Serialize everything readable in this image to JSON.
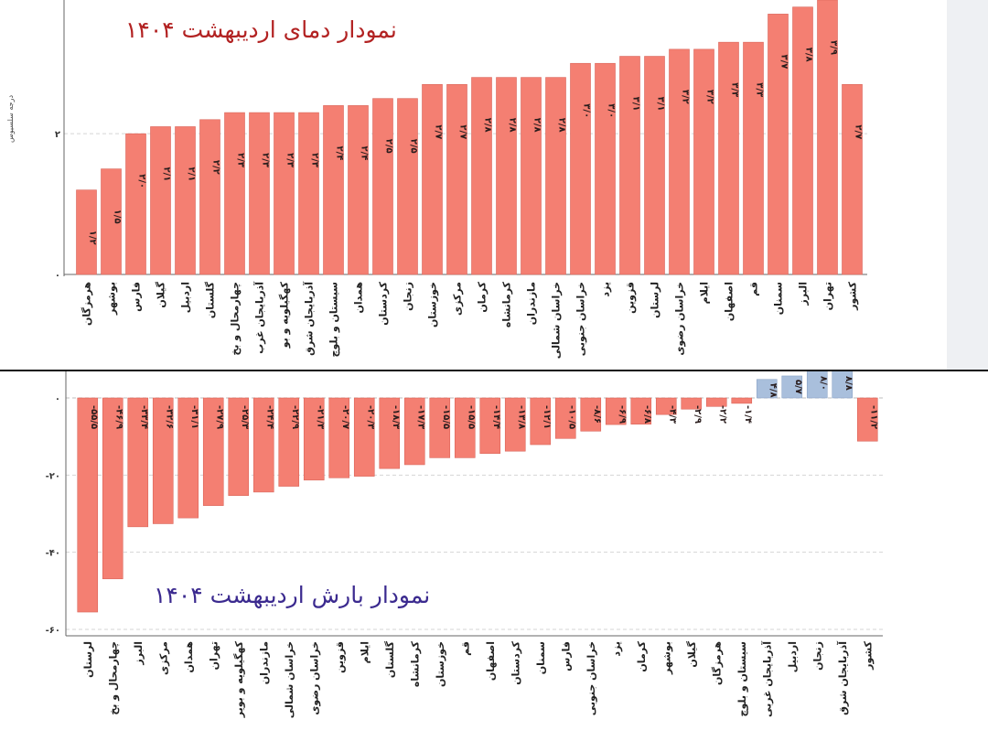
{
  "chart_data": [
    {
      "type": "bar",
      "title": "نمودار دمای اردیبهشت ۱۴۰۴",
      "ylabel": "درجه سلسیوس",
      "ylim": [
        0,
        3.9
      ],
      "yticks": [
        {
          "value": 0,
          "label": "۰"
        },
        {
          "value": 2,
          "label": "۲"
        }
      ],
      "grid": true,
      "categories": [
        "هرمزگان",
        "بوشهر",
        "فارس",
        "گیلان",
        "اردبیل",
        "گلستان",
        "چهارمحال و بخ",
        "آذربایجان غرب",
        "کهگیلویه و بو",
        "آذربایجان شرق",
        "سیستان و بلوچ",
        "همدان",
        "کردستان",
        "زنجان",
        "خوزستان",
        "مرکزی",
        "کرمان",
        "کرمانشاه",
        "مازندران",
        "خراسان شمالی",
        "خراسان جنوبی",
        "یزد",
        "قزوین",
        "لرستان",
        "خراسان رضوی",
        "ایلام",
        "اصفهان",
        "قم",
        "سمنان",
        "البرز",
        "تهران",
        "کشور"
      ],
      "values": [
        1.2,
        1.5,
        2.0,
        2.1,
        2.1,
        2.2,
        2.3,
        2.3,
        2.3,
        2.3,
        2.4,
        2.4,
        2.5,
        2.5,
        2.7,
        2.7,
        2.8,
        2.8,
        2.8,
        2.8,
        3.0,
        3.0,
        3.1,
        3.1,
        3.2,
        3.2,
        3.3,
        3.3,
        3.7,
        3.8,
        3.9,
        2.7
      ],
      "value_labels": [
        "۱/۲",
        "۱/۵",
        "۲/۰",
        "۲/۱",
        "۲/۱",
        "۲/۲",
        "۲/۳",
        "۲/۳",
        "۲/۳",
        "۲/۳",
        "۲/۴",
        "۲/۴",
        "۲/۵",
        "۲/۵",
        "۲/۷",
        "۲/۷",
        "۲/۸",
        "۲/۸",
        "۲/۸",
        "۲/۸",
        "۳/۰",
        "۳/۰",
        "۳/۱",
        "۳/۱",
        "۳/۲",
        "۳/۲",
        "۳/۳",
        "۳/۳",
        "۳/۷",
        "۳/۸",
        "۳/۹",
        "۲/۷"
      ],
      "colors": {
        "bar": "#f47f72",
        "bar_stroke": "#d9655a"
      }
    },
    {
      "type": "bar",
      "title": "نمودار بارش اردیبهشت ۱۴۰۴",
      "ylim": [
        -60,
        0
      ],
      "yticks": [
        {
          "value": 0,
          "label": "۰"
        },
        {
          "value": -20,
          "label": "-۲۰"
        },
        {
          "value": -40,
          "label": "-۴۰"
        },
        {
          "value": -60,
          "label": "-۶۰"
        }
      ],
      "grid": true,
      "categories": [
        "لرستان",
        "چهارمحال و بخ",
        "البرز",
        "مرکزی",
        "همدان",
        "تهران",
        "کهگیلویه و بویر",
        "مازندران",
        "خراسان شمالی",
        "خراسان رضوی",
        "قزوین",
        "ایلام",
        "گلستان",
        "کرمانشاه",
        "خوزستان",
        "قم",
        "اصفهان",
        "کردستان",
        "سمنان",
        "فارس",
        "خراسان جنوبی",
        "یزد",
        "کرمان",
        "بوشهر",
        "گیلان",
        "هرمزگان",
        "سیستان و بلوچ",
        "آذربایجان غربی",
        "اردبیل",
        "زنجان",
        "آذربایجان شرق",
        "کشور"
      ],
      "values": [
        -55.5,
        -46.9,
        -33.4,
        -32.6,
        -31.1,
        -27.9,
        -25.3,
        -24.4,
        -22.9,
        -21.3,
        -20.7,
        -20.3,
        -18.3,
        -17.3,
        -15.5,
        -15.5,
        -14.4,
        -13.8,
        -12.1,
        -10.5,
        -8.6,
        -6.9,
        -6.8,
        -4.3,
        -2.9,
        -2.2,
        -1.4,
        4.8,
        5.7,
        8.0,
        8.8,
        -11.2
      ],
      "value_labels": [
        "-۵۵/۵",
        "-۴۶/۹",
        "-۳۳/۴",
        "-۳۲/۶",
        "-۳۱/۱",
        "-۲۷/۹",
        "-۲۵/۳",
        "-۲۴/۴",
        "-۲۲/۹",
        "-۲۱/۳",
        "-۲۰/۷",
        "-۲۰/۳",
        "-۱۸/۳",
        "-۱۷/۳",
        "-۱۵/۵",
        "-۱۵/۵",
        "-۱۴/۴",
        "-۱۳/۸",
        "-۱۲/۱",
        "-۱۰/۵",
        "-۸/۶",
        "-۶/۹",
        "-۶/۸",
        "-۴/۳",
        "-۲/۹",
        "-۲/۲",
        "-۱/۴",
        "۴/۸",
        "۵/۷",
        "۸/۰",
        "۸/۸",
        "-۱۱/۲"
      ],
      "colors": {
        "negative": "#f47f72",
        "positive": "#a9bfdc",
        "bar_stroke": "#d9655a",
        "positive_stroke": "#8aa3c6"
      }
    }
  ]
}
